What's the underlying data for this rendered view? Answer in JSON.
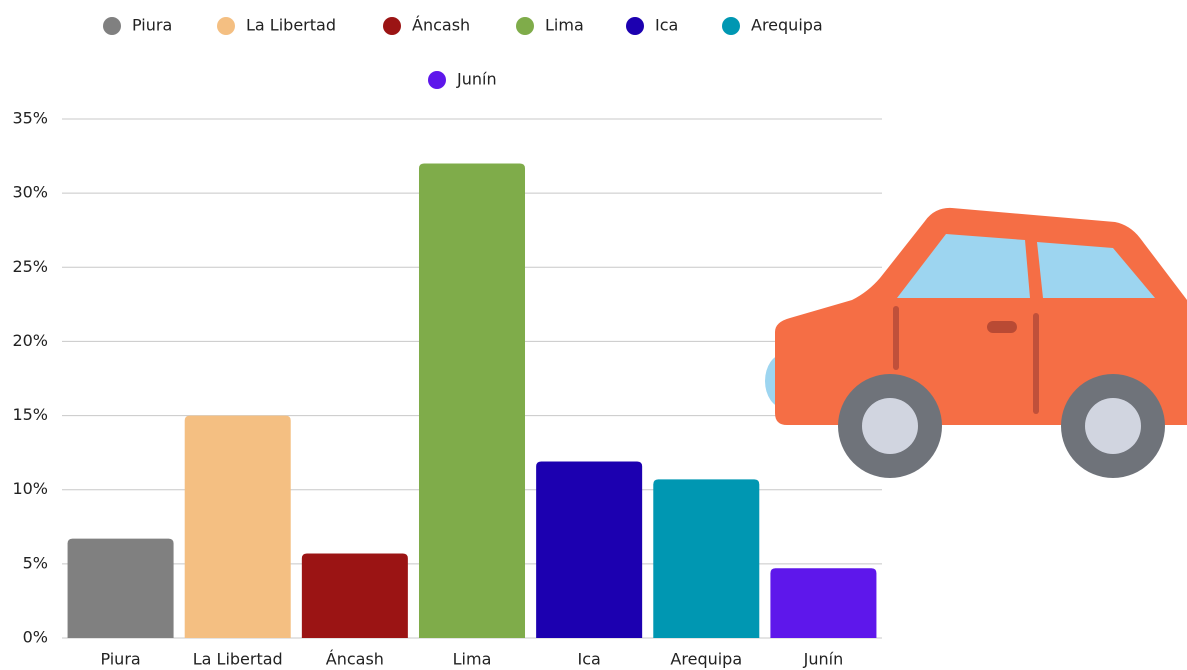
{
  "chart_data": {
    "type": "bar",
    "categories": [
      "Piura",
      "La Libertad",
      "Áncash",
      "Lima",
      "Ica",
      "Arequipa",
      "Junín"
    ],
    "values": [
      6.7,
      15.0,
      5.7,
      32.0,
      11.9,
      10.7,
      4.7
    ],
    "colors": [
      "#808080",
      "#f4bf82",
      "#9b1414",
      "#7fac4a",
      "#1c00b0",
      "#0097b2",
      "#5e17eb"
    ],
    "ylim": [
      0,
      35
    ],
    "yticks": [
      {
        "value": 0,
        "label": "0%"
      },
      {
        "value": 5,
        "label": "5%"
      },
      {
        "value": 10,
        "label": "10%"
      },
      {
        "value": 15,
        "label": "15%"
      },
      {
        "value": 20,
        "label": "20%"
      },
      {
        "value": 25,
        "label": "25%"
      },
      {
        "value": 30,
        "label": "30%"
      },
      {
        "value": 35,
        "label": "35%"
      }
    ],
    "grid": true,
    "legend": "top"
  }
}
